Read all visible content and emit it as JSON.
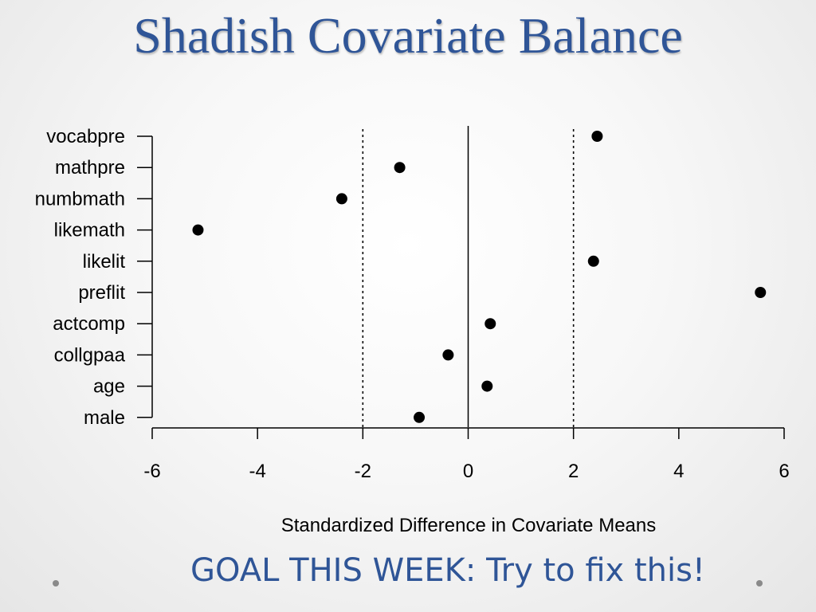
{
  "slide": {
    "title": "Shadish Covariate Balance",
    "goal": "GOAL THIS WEEK: Try to fix this!"
  },
  "colors": {
    "title": "#2f5597",
    "points": "#000000",
    "background": "#f3f3f3"
  },
  "chart_data": {
    "type": "scatter",
    "title": "",
    "xlabel": "Standardized Difference in Covariate Means",
    "ylabel": "",
    "xlim": [
      -6,
      6
    ],
    "xticks": [
      -6,
      -4,
      -2,
      0,
      2,
      4,
      6
    ],
    "reference_lines": [
      {
        "x": 0,
        "style": "solid"
      },
      {
        "x": -2,
        "style": "dotted"
      },
      {
        "x": 2,
        "style": "dotted"
      }
    ],
    "grid": false,
    "points": [
      {
        "label": "vocabpre",
        "x": 2.45
      },
      {
        "label": "mathpre",
        "x": -1.3
      },
      {
        "label": "numbmath",
        "x": -2.4
      },
      {
        "label": "likemath",
        "x": -5.13
      },
      {
        "label": "likelit",
        "x": 2.38
      },
      {
        "label": "preflit",
        "x": 5.55
      },
      {
        "label": "actcomp",
        "x": 0.42
      },
      {
        "label": "collgpaa",
        "x": -0.38
      },
      {
        "label": "age",
        "x": 0.36
      },
      {
        "label": "male",
        "x": -0.93
      }
    ]
  }
}
